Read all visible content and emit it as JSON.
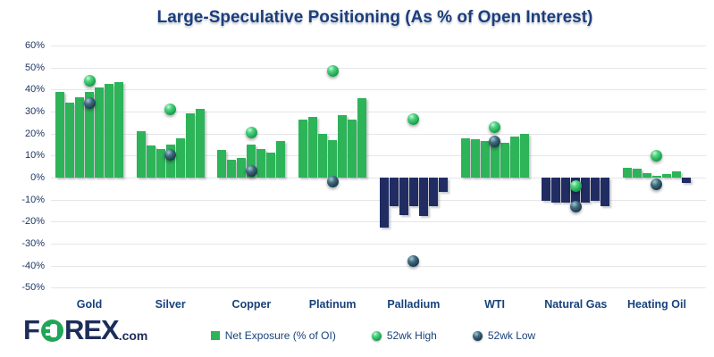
{
  "title": "Large-Speculative Positioning (As % of Open Interest)",
  "logo": {
    "part1": "F",
    "part2": "REX",
    "suffix": ".com",
    "green": "#21a658",
    "navy": "#1d2d5a"
  },
  "legend": [
    {
      "label": "Net Exposure (% of OI)",
      "marker": "green-square"
    },
    {
      "label": "52wk High",
      "marker": "green-sphere"
    },
    {
      "label": "52wk Low",
      "marker": "dark-sphere"
    }
  ],
  "colors": {
    "bar_positive": "#2db358",
    "bar_negative": "#202c62",
    "high_dot": "#1ca854",
    "low_dot": "#1d3d4e",
    "title_text": "#1b3e7d",
    "axis_text": "#1f3864",
    "category_text": "#17427c",
    "gridline": "#e4e6e9"
  },
  "chart_data": {
    "type": "bar",
    "title": "Large-Speculative Positioning (As % of Open Interest)",
    "xlabel": "",
    "ylabel": "",
    "ylim": [
      -50,
      60
    ],
    "grid": true,
    "legend_position": "bottom",
    "yticks": [
      {
        "value": 60,
        "label": "60%"
      },
      {
        "value": 50,
        "label": "50%"
      },
      {
        "value": 40,
        "label": "40%"
      },
      {
        "value": 30,
        "label": "30%"
      },
      {
        "value": 20,
        "label": "20%"
      },
      {
        "value": 10,
        "label": "10%"
      },
      {
        "value": 0,
        "label": "0%"
      },
      {
        "value": -10,
        "label": "-10%"
      },
      {
        "value": -20,
        "label": "-20%"
      },
      {
        "value": -30,
        "label": "-30%"
      },
      {
        "value": -40,
        "label": "-40%"
      },
      {
        "value": -50,
        "label": "-50%"
      }
    ],
    "categories": [
      "Gold",
      "Silver",
      "Copper",
      "Platinum",
      "Palladium",
      "WTI",
      "Natural Gas",
      "Heating Oil"
    ],
    "series": [
      {
        "name": "Net Exposure (% of OI)",
        "type": "bar",
        "bars_per_category": 7,
        "values": [
          [
            39,
            34,
            36.5,
            39,
            41,
            42.5,
            43.5
          ],
          [
            21,
            14.5,
            13,
            15,
            18,
            29,
            31
          ],
          [
            12.5,
            8,
            9,
            15,
            13,
            11.5,
            16.5
          ],
          [
            26.5,
            27.5,
            20,
            17,
            28.5,
            26.5,
            36
          ],
          [
            -22.5,
            -13,
            -17,
            -13,
            -17.5,
            -13,
            -6.5
          ],
          [
            18,
            17.5,
            16.5,
            16,
            16,
            18.5,
            20
          ],
          [
            -10.5,
            -11.5,
            -11.5,
            -11.5,
            -11.5,
            -10.5,
            -13
          ],
          [
            4.5,
            4,
            2,
            1,
            1.75,
            2.75,
            -2.5
          ]
        ]
      },
      {
        "name": "52wk High",
        "type": "point",
        "values": [
          44,
          31,
          20.5,
          48.5,
          26.5,
          23,
          -4,
          10
        ]
      },
      {
        "name": "52wk Low",
        "type": "point",
        "values": [
          34,
          10.5,
          3,
          -2,
          -38,
          16.5,
          -13,
          -3
        ]
      }
    ]
  }
}
